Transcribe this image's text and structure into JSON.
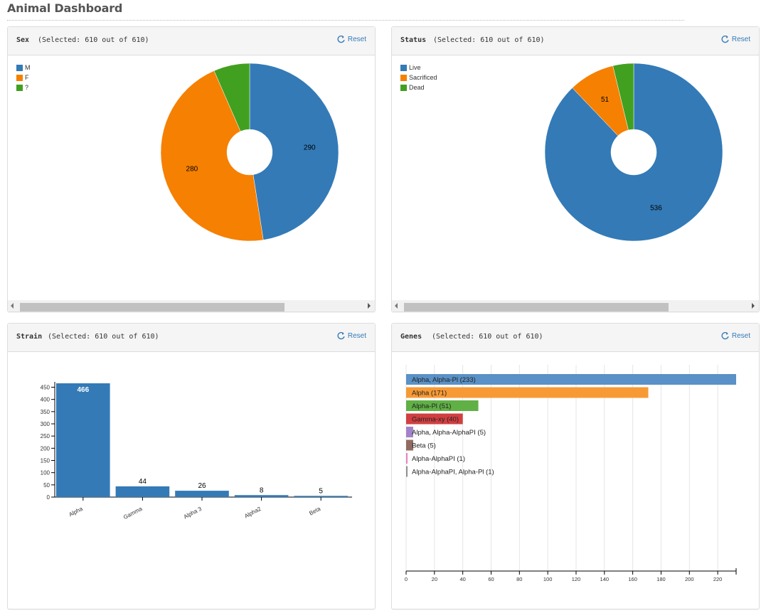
{
  "page": {
    "title": "Animal Dashboard"
  },
  "panels": {
    "sex": {
      "title": "Sex",
      "selected": "(Selected: 610 out of 610)",
      "reset": "Reset"
    },
    "status": {
      "title": "Status",
      "selected": "(Selected: 610 out of 610)",
      "reset": "Reset"
    },
    "strain": {
      "title": "Strain",
      "selected": "(Selected: 610 out of 610)",
      "reset": "Reset"
    },
    "genes": {
      "title": "Genes",
      "selected": "(Selected: 610 out of 610)",
      "reset": "Reset"
    }
  },
  "chart_data": [
    {
      "type": "pie",
      "title": "Sex",
      "donut": true,
      "legend_position": "top-left",
      "slices": [
        {
          "label": "M",
          "value": 290,
          "color": "#337ab7"
        },
        {
          "label": "F",
          "value": 280,
          "color": "#f58002"
        },
        {
          "label": "?",
          "value": 40,
          "color": "#41a020"
        }
      ],
      "data_labels": [
        "290",
        "280"
      ]
    },
    {
      "type": "pie",
      "title": "Status",
      "donut": true,
      "legend_position": "top-left",
      "slices": [
        {
          "label": "Live",
          "value": 536,
          "color": "#337ab7"
        },
        {
          "label": "Sacrificed",
          "value": 51,
          "color": "#f58002"
        },
        {
          "label": "Dead",
          "value": 23,
          "color": "#41a020"
        }
      ],
      "data_labels": [
        "536",
        "51"
      ]
    },
    {
      "type": "bar",
      "title": "Strain",
      "categories": [
        "Alpha",
        "Gamma",
        "Alpha 3",
        "Alpha2",
        "Beta"
      ],
      "values": [
        466,
        44,
        26,
        8,
        5
      ],
      "ylim": [
        0,
        466
      ],
      "yticks": [
        0,
        50,
        100,
        150,
        200,
        250,
        300,
        350,
        400,
        450
      ],
      "color": "#337ab7",
      "grid": false
    },
    {
      "type": "bar",
      "orientation": "horizontal",
      "title": "Genes",
      "labels": [
        "Alpha, Alpha-Pl (233)",
        "Alpha (171)",
        "Alpha-Pl (51)",
        "Gamma-xy (40)",
        "Alpha, Alpha-AlphaPI (5)",
        "Beta (5)",
        "Alpha-AlphaPI (1)",
        "Alpha-AlphaPI, Alpha-Pl (1)"
      ],
      "values": [
        233,
        171,
        51,
        40,
        5,
        5,
        1,
        1
      ],
      "colors": [
        "#5a91c6",
        "#f79a35",
        "#60b046",
        "#d13f41",
        "#a283c9",
        "#926b60",
        "#e782c1",
        "#8f8f8f"
      ],
      "xlim": [
        0,
        233
      ],
      "xticks": [
        0,
        20,
        40,
        60,
        80,
        100,
        120,
        140,
        160,
        180,
        200,
        220
      ],
      "grid": true
    }
  ]
}
